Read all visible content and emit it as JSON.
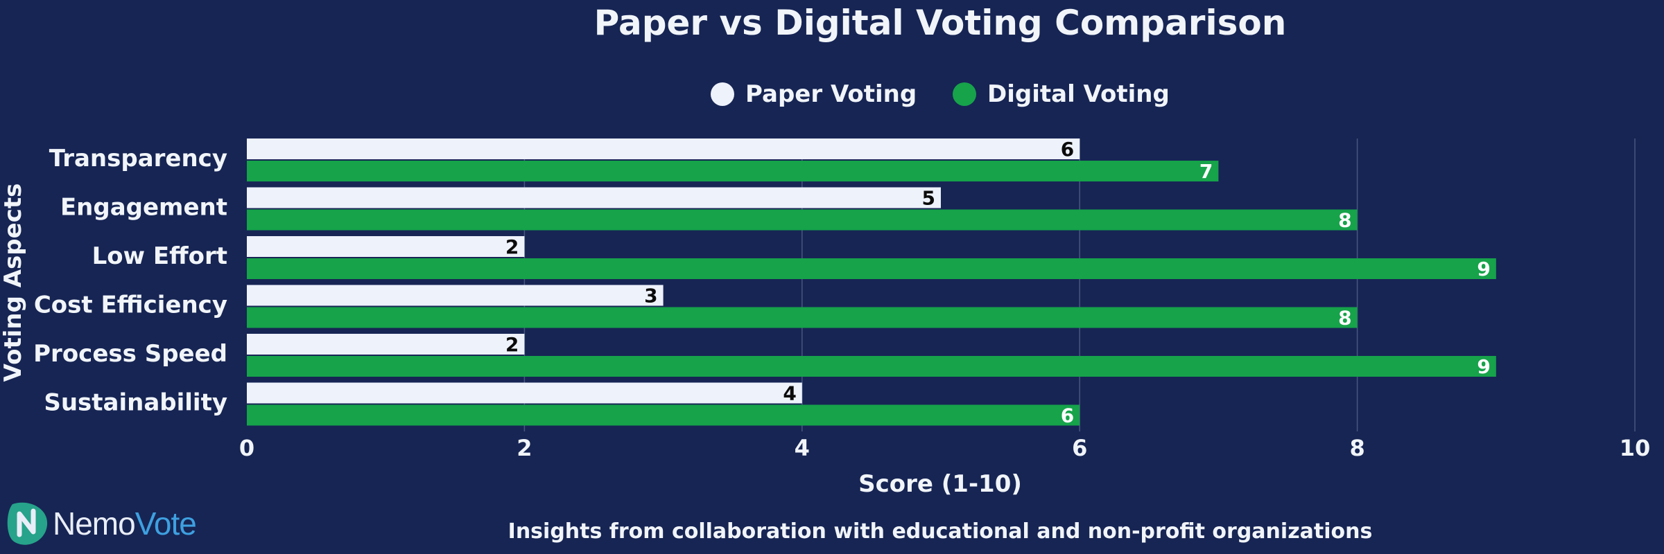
{
  "chart_data": {
    "type": "bar",
    "orientation": "horizontal",
    "title": "Paper vs Digital Voting Comparison",
    "subtitle": "Insights from collaboration with educational and non-profit organizations",
    "xlabel": "Score (1-10)",
    "ylabel": "Voting Aspects",
    "xlim": [
      0,
      10
    ],
    "xticks": [
      "0",
      "2",
      "4",
      "6",
      "8",
      "10"
    ],
    "grid": true,
    "legend_position": "top-center",
    "categories": [
      "Transparency",
      "Engagement",
      "Low Effort",
      "Cost Efficiency",
      "Process Speed",
      "Sustainability"
    ],
    "series": [
      {
        "name": "Paper Voting",
        "values": [
          6,
          5,
          2,
          3,
          2,
          4
        ],
        "color": "#eef2fb"
      },
      {
        "name": "Digital Voting",
        "values": [
          7,
          8,
          9,
          8,
          9,
          6
        ],
        "color": "#16a34a"
      }
    ]
  },
  "branding": {
    "logo_part1": "Nemo",
    "logo_part2": "Vote",
    "logo_icon": "nemovote-n-icon"
  },
  "colors": {
    "background": "#172554",
    "text": "#f1f5f9",
    "grid": "#46577f"
  }
}
